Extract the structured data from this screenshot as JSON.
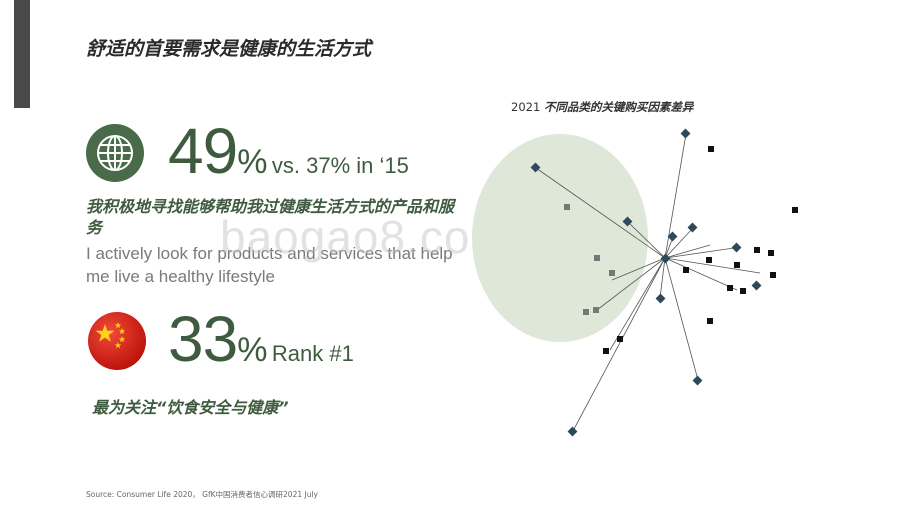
{
  "slide": {
    "title": "舒适的首要需求是健康的生活方式",
    "watermark": "baogao8.com",
    "source": "Source: Consumer Life 2020， GfK中国消费者信心调研2021 July"
  },
  "stat1": {
    "icon": "globe-icon",
    "number": "49",
    "pct": "%",
    "compare": "vs. 37% in ‘15",
    "headline_cn": "我积极地寻找能够帮助我过健康生活方式的产品和服务",
    "text_en": "I actively look for products and services that help me live a healthy lifestyle"
  },
  "stat2": {
    "icon": "china-flag-icon",
    "number": "33",
    "pct": "%",
    "rank": "Rank #1",
    "headline_cn": "最为关注“饮食安全与健康”"
  },
  "chart": {
    "year": "2021",
    "label": "不同品类的关键购买因素差异",
    "colors": {
      "factor": "#2e4a5a",
      "category": "#8b1a1a",
      "circle": "#dfe8d8",
      "hub": "#000000"
    }
  }
}
